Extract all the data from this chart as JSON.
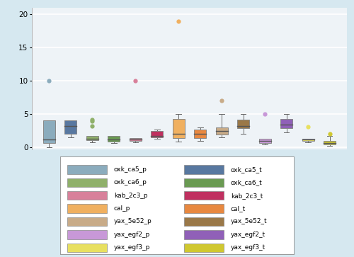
{
  "background_color": "#d6e8f0",
  "plot_bg_color": "#eef3f7",
  "ylim": [
    -0.3,
    21
  ],
  "yticks": [
    0,
    5,
    10,
    15,
    20
  ],
  "grid_color": "white",
  "boxes": [
    {
      "label": "oxk_ca5_p",
      "color": "#8bacbd",
      "x": 1,
      "whislo": 0.0,
      "q1": 0.6,
      "med": 1.1,
      "q3": 4.0,
      "whishi": 4.0,
      "fliers": [
        3.0,
        10.0
      ]
    },
    {
      "label": "oxk_ca5_t",
      "color": "#5878a0",
      "x": 2,
      "whislo": 1.5,
      "q1": 2.0,
      "med": 3.2,
      "q3": 4.0,
      "whishi": 4.0,
      "fliers": []
    },
    {
      "label": "oxk_ca6_p",
      "color": "#8fb06a",
      "x": 3,
      "whislo": 0.7,
      "q1": 1.0,
      "med": 1.2,
      "q3": 1.7,
      "whishi": 1.7,
      "fliers": [
        3.9,
        4.1,
        3.2
      ]
    },
    {
      "label": "oxk_ca6_t",
      "color": "#6a9a52",
      "x": 4,
      "whislo": 0.6,
      "q1": 0.8,
      "med": 1.1,
      "q3": 1.7,
      "whishi": 1.7,
      "fliers": []
    },
    {
      "label": "kab_2c3_p",
      "color": "#d8809a",
      "x": 5,
      "whislo": 0.7,
      "q1": 0.9,
      "med": 1.1,
      "q3": 1.4,
      "whishi": 1.4,
      "fliers": [
        10.0
      ]
    },
    {
      "label": "kab_2c3_t",
      "color": "#c03060",
      "x": 6,
      "whislo": 1.2,
      "q1": 1.5,
      "med": 1.7,
      "q3": 2.4,
      "whishi": 2.6,
      "fliers": []
    },
    {
      "label": "cal_p",
      "color": "#f0b060",
      "x": 7,
      "whislo": 0.8,
      "q1": 1.4,
      "med": 2.0,
      "q3": 4.2,
      "whishi": 5.0,
      "fliers": [
        19.0
      ]
    },
    {
      "label": "cal_t",
      "color": "#e88840",
      "x": 8,
      "whislo": 0.9,
      "q1": 1.4,
      "med": 2.0,
      "q3": 2.6,
      "whishi": 3.0,
      "fliers": []
    },
    {
      "label": "yax_5e52_p",
      "color": "#c8ab88",
      "x": 9,
      "whislo": 1.5,
      "q1": 1.9,
      "med": 2.4,
      "q3": 3.0,
      "whishi": 5.0,
      "fliers": [
        7.0
      ]
    },
    {
      "label": "yax_5e52_t",
      "color": "#9a7848",
      "x": 10,
      "whislo": 2.0,
      "q1": 2.8,
      "med": 3.2,
      "q3": 4.1,
      "whishi": 5.0,
      "fliers": []
    },
    {
      "label": "yax_egf2_p",
      "color": "#c898d8",
      "x": 11,
      "whislo": 0.4,
      "q1": 0.6,
      "med": 0.9,
      "q3": 1.2,
      "whishi": 1.2,
      "fliers": [
        5.0
      ]
    },
    {
      "label": "yax_egf2_t",
      "color": "#9060b8",
      "x": 12,
      "whislo": 2.2,
      "q1": 2.8,
      "med": 3.4,
      "q3": 4.2,
      "whishi": 5.0,
      "fliers": []
    },
    {
      "label": "yax_egf3_p",
      "color": "#e8e060",
      "x": 13,
      "whislo": 0.7,
      "q1": 0.9,
      "med": 1.1,
      "q3": 1.3,
      "whishi": 1.3,
      "fliers": [
        3.1
      ]
    },
    {
      "label": "yax_egf3_t",
      "color": "#d0c830",
      "x": 14,
      "whislo": 0.2,
      "q1": 0.4,
      "med": 0.6,
      "q3": 0.9,
      "whishi": 1.7,
      "fliers": [
        2.0
      ]
    }
  ],
  "legend_entries_left": [
    {
      "label": "oxk_ca5_p",
      "color": "#8bacbd"
    },
    {
      "label": "oxk_ca6_p",
      "color": "#8fb06a"
    },
    {
      "label": "kab_2c3_p",
      "color": "#d8809a"
    },
    {
      "label": "cal_p",
      "color": "#f0b060"
    },
    {
      "label": "yax_5e52_p",
      "color": "#c8ab88"
    },
    {
      "label": "yax_egf2_p",
      "color": "#c898d8"
    },
    {
      "label": "yax_egf3_p",
      "color": "#e8e060"
    }
  ],
  "legend_entries_right": [
    {
      "label": "oxk_ca5_t",
      "color": "#5878a0"
    },
    {
      "label": "oxk_ca6_t",
      "color": "#6a9a52"
    },
    {
      "label": "kab_2c3_t",
      "color": "#c03060"
    },
    {
      "label": "cal_t",
      "color": "#e88840"
    },
    {
      "label": "yax_5e52_t",
      "color": "#9a7848"
    },
    {
      "label": "yax_egf2_t",
      "color": "#9060b8"
    },
    {
      "label": "yax_egf3_t",
      "color": "#d0c830"
    }
  ]
}
